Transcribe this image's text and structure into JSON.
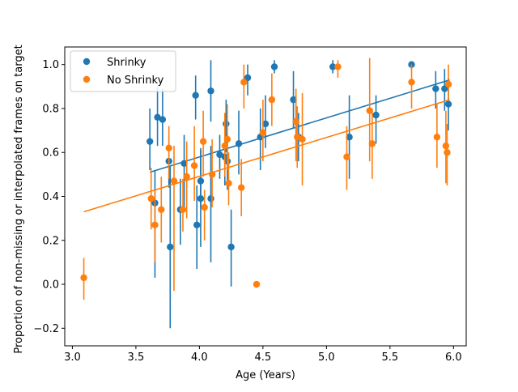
{
  "chart_data": {
    "type": "scatter",
    "title": "",
    "xlabel": "Age (Years)",
    "ylabel": "Proportion of non-missing or interpolated frames on target",
    "xlim": [
      2.94,
      6.1
    ],
    "ylim": [
      -0.28,
      1.08
    ],
    "xticks": [
      3.0,
      3.5,
      4.0,
      4.5,
      5.0,
      5.5,
      6.0
    ],
    "xtick_labels": [
      "3.0",
      "3.5",
      "4.0",
      "4.5",
      "5.0",
      "5.5",
      "6.0"
    ],
    "yticks": [
      -0.2,
      0.0,
      0.2,
      0.4,
      0.6,
      0.8,
      1.0
    ],
    "ytick_labels": [
      "−0.2",
      "0.0",
      "0.2",
      "0.4",
      "0.6",
      "0.8",
      "1.0"
    ],
    "grid": false,
    "legend_position": "top-left",
    "series": [
      {
        "name": "Shrinky",
        "color": "#1f77b4",
        "points": [
          {
            "x": 3.61,
            "y": 0.65,
            "lo": 0.52,
            "hi": 0.8
          },
          {
            "x": 3.65,
            "y": 0.37,
            "lo": 0.03,
            "hi": 0.52
          },
          {
            "x": 3.67,
            "y": 0.76,
            "lo": 0.63,
            "hi": 0.9
          },
          {
            "x": 3.71,
            "y": 0.75,
            "lo": 0.63,
            "hi": 0.89
          },
          {
            "x": 3.76,
            "y": 0.56,
            "lo": 0.44,
            "hi": 0.67
          },
          {
            "x": 3.77,
            "y": 0.17,
            "lo": -0.2,
            "hi": 0.54
          },
          {
            "x": 3.85,
            "y": 0.34,
            "lo": 0.18,
            "hi": 0.48
          },
          {
            "x": 3.88,
            "y": 0.55,
            "lo": 0.35,
            "hi": 0.68
          },
          {
            "x": 3.97,
            "y": 0.86,
            "lo": 0.75,
            "hi": 0.95
          },
          {
            "x": 3.98,
            "y": 0.27,
            "lo": 0.07,
            "hi": 0.45
          },
          {
            "x": 4.01,
            "y": 0.47,
            "lo": 0.35,
            "hi": 0.62
          },
          {
            "x": 4.01,
            "y": 0.39,
            "lo": 0.17,
            "hi": 0.61
          },
          {
            "x": 4.09,
            "y": 0.39,
            "lo": 0.1,
            "hi": 0.63
          },
          {
            "x": 4.09,
            "y": 0.88,
            "lo": 0.74,
            "hi": 1.02
          },
          {
            "x": 4.16,
            "y": 0.59,
            "lo": 0.48,
            "hi": 0.68
          },
          {
            "x": 4.2,
            "y": 0.58,
            "lo": 0.45,
            "hi": 0.67
          },
          {
            "x": 4.21,
            "y": 0.73,
            "lo": 0.6,
            "hi": 0.84
          },
          {
            "x": 4.22,
            "y": 0.56,
            "lo": 0.43,
            "hi": 0.68
          },
          {
            "x": 4.25,
            "y": 0.17,
            "lo": -0.01,
            "hi": 0.34
          },
          {
            "x": 4.31,
            "y": 0.64,
            "lo": 0.5,
            "hi": 0.79
          },
          {
            "x": 4.38,
            "y": 0.94,
            "lo": 0.86,
            "hi": 1.0
          },
          {
            "x": 4.48,
            "y": 0.67,
            "lo": 0.52,
            "hi": 0.8
          },
          {
            "x": 4.52,
            "y": 0.73,
            "lo": 0.62,
            "hi": 0.86
          },
          {
            "x": 4.59,
            "y": 0.99,
            "lo": 0.96,
            "hi": 1.02
          },
          {
            "x": 4.74,
            "y": 0.84,
            "lo": 0.71,
            "hi": 0.97
          },
          {
            "x": 4.76,
            "y": 0.74,
            "lo": 0.62,
            "hi": 0.86
          },
          {
            "x": 4.78,
            "y": 0.67,
            "lo": 0.56,
            "hi": 0.78
          },
          {
            "x": 5.05,
            "y": 0.99,
            "lo": 0.96,
            "hi": 1.02
          },
          {
            "x": 5.18,
            "y": 0.67,
            "lo": 0.48,
            "hi": 0.86
          },
          {
            "x": 5.39,
            "y": 0.77,
            "lo": 0.64,
            "hi": 0.86
          },
          {
            "x": 5.67,
            "y": 1.0,
            "lo": 0.98,
            "hi": 1.01
          },
          {
            "x": 5.86,
            "y": 0.89,
            "lo": 0.8,
            "hi": 0.97
          },
          {
            "x": 5.93,
            "y": 0.89,
            "lo": 0.79,
            "hi": 0.98
          },
          {
            "x": 5.96,
            "y": 0.82,
            "lo": 0.7,
            "hi": 0.94
          }
        ],
        "trend": {
          "x0": 3.61,
          "y0": 0.51,
          "x1": 5.97,
          "y1": 0.93
        }
      },
      {
        "name": "No Shrinky",
        "color": "#ff7f0e",
        "points": [
          {
            "x": 3.09,
            "y": 0.03,
            "lo": -0.07,
            "hi": 0.12
          },
          {
            "x": 3.62,
            "y": 0.39,
            "lo": 0.25,
            "hi": 0.53
          },
          {
            "x": 3.65,
            "y": 0.27,
            "lo": 0.1,
            "hi": 0.43
          },
          {
            "x": 3.7,
            "y": 0.34,
            "lo": 0.19,
            "hi": 0.49
          },
          {
            "x": 3.76,
            "y": 0.62,
            "lo": 0.48,
            "hi": 0.72
          },
          {
            "x": 3.8,
            "y": 0.47,
            "lo": -0.03,
            "hi": 0.63
          },
          {
            "x": 3.87,
            "y": 0.34,
            "lo": 0.24,
            "hi": 0.48
          },
          {
            "x": 3.9,
            "y": 0.49,
            "lo": 0.3,
            "hi": 0.65
          },
          {
            "x": 3.96,
            "y": 0.54,
            "lo": 0.38,
            "hi": 0.72
          },
          {
            "x": 4.03,
            "y": 0.65,
            "lo": 0.49,
            "hi": 0.79
          },
          {
            "x": 4.04,
            "y": 0.35,
            "lo": 0.2,
            "hi": 0.43
          },
          {
            "x": 4.1,
            "y": 0.5,
            "lo": 0.35,
            "hi": 0.66
          },
          {
            "x": 4.2,
            "y": 0.63,
            "lo": 0.49,
            "hi": 0.78
          },
          {
            "x": 4.22,
            "y": 0.66,
            "lo": 0.52,
            "hi": 0.82
          },
          {
            "x": 4.23,
            "y": 0.46,
            "lo": 0.36,
            "hi": 0.6
          },
          {
            "x": 4.33,
            "y": 0.44,
            "lo": 0.31,
            "hi": 0.57
          },
          {
            "x": 4.35,
            "y": 0.92,
            "lo": 0.8,
            "hi": 1.0
          },
          {
            "x": 4.45,
            "y": 0.0,
            "lo": 0.0,
            "hi": 0.0
          },
          {
            "x": 4.5,
            "y": 0.69,
            "lo": 0.56,
            "hi": 0.84
          },
          {
            "x": 4.57,
            "y": 0.84,
            "lo": 0.72,
            "hi": 0.96
          },
          {
            "x": 4.76,
            "y": 0.74,
            "lo": 0.56,
            "hi": 0.89
          },
          {
            "x": 4.77,
            "y": 0.67,
            "lo": 0.53,
            "hi": 0.81
          },
          {
            "x": 4.81,
            "y": 0.66,
            "lo": 0.45,
            "hi": 0.87
          },
          {
            "x": 5.09,
            "y": 0.99,
            "lo": 0.94,
            "hi": 1.02
          },
          {
            "x": 5.16,
            "y": 0.58,
            "lo": 0.43,
            "hi": 0.72
          },
          {
            "x": 5.34,
            "y": 0.79,
            "lo": 0.56,
            "hi": 1.03
          },
          {
            "x": 5.36,
            "y": 0.64,
            "lo": 0.48,
            "hi": 0.8
          },
          {
            "x": 5.67,
            "y": 0.92,
            "lo": 0.8,
            "hi": 1.0
          },
          {
            "x": 5.87,
            "y": 0.67,
            "lo": 0.53,
            "hi": 0.82
          },
          {
            "x": 5.94,
            "y": 0.63,
            "lo": 0.46,
            "hi": 0.79
          },
          {
            "x": 5.95,
            "y": 0.6,
            "lo": 0.45,
            "hi": 0.73
          },
          {
            "x": 5.96,
            "y": 0.91,
            "lo": 0.84,
            "hi": 1.0
          }
        ],
        "trend": {
          "x0": 3.09,
          "y0": 0.33,
          "x1": 5.97,
          "y1": 0.84
        }
      }
    ]
  }
}
